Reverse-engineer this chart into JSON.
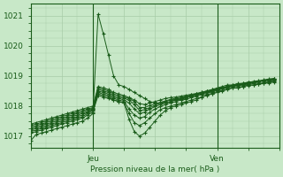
{
  "title": "Pression niveau de la mer( hPa )",
  "ylabel_ticks": [
    1017,
    1018,
    1019,
    1020,
    1021
  ],
  "ylim": [
    1016.6,
    1021.4
  ],
  "xlim": [
    0,
    48
  ],
  "xtick_positions": [
    12,
    36
  ],
  "xtick_labels": [
    "Jeu",
    "Ven"
  ],
  "bg_color": "#c8e8c8",
  "grid_color": "#a8cca8",
  "line_color": "#1a5c1a",
  "series": [
    [
      1016.85,
      1017.05,
      1017.1,
      1017.15,
      1017.2,
      1017.25,
      1017.3,
      1017.35,
      1017.4,
      1017.45,
      1017.5,
      1017.6,
      1017.75,
      1021.05,
      1020.4,
      1019.7,
      1019.0,
      1018.7,
      1018.65,
      1018.55,
      1018.45,
      1018.35,
      1018.25,
      1018.15,
      1018.1,
      1018.1,
      1018.1,
      1018.15,
      1018.2,
      1018.25,
      1018.3,
      1018.35,
      1018.4,
      1018.45,
      1018.5,
      1018.55,
      1018.6,
      1018.65,
      1018.7,
      1018.7,
      1018.75,
      1018.75,
      1018.8,
      1018.8,
      1018.82,
      1018.84,
      1018.86,
      1018.88
    ],
    [
      1017.1,
      1017.15,
      1017.2,
      1017.25,
      1017.3,
      1017.35,
      1017.4,
      1017.45,
      1017.5,
      1017.55,
      1017.6,
      1017.7,
      1017.8,
      1018.35,
      1018.3,
      1018.25,
      1018.2,
      1018.15,
      1018.1,
      1017.55,
      1017.15,
      1017.0,
      1017.1,
      1017.3,
      1017.5,
      1017.7,
      1017.85,
      1017.95,
      1018.0,
      1018.05,
      1018.1,
      1018.15,
      1018.2,
      1018.3,
      1018.35,
      1018.4,
      1018.45,
      1018.5,
      1018.55,
      1018.6,
      1018.6,
      1018.65,
      1018.7,
      1018.7,
      1018.72,
      1018.75,
      1018.77,
      1018.8
    ],
    [
      1017.15,
      1017.2,
      1017.25,
      1017.3,
      1017.35,
      1017.4,
      1017.45,
      1017.5,
      1017.55,
      1017.6,
      1017.65,
      1017.75,
      1017.85,
      1018.4,
      1018.35,
      1018.3,
      1018.2,
      1018.15,
      1018.1,
      1017.75,
      1017.45,
      1017.35,
      1017.45,
      1017.6,
      1017.75,
      1017.88,
      1017.95,
      1018.0,
      1018.05,
      1018.1,
      1018.15,
      1018.2,
      1018.25,
      1018.3,
      1018.38,
      1018.42,
      1018.48,
      1018.52,
      1018.57,
      1018.6,
      1018.62,
      1018.65,
      1018.68,
      1018.7,
      1018.73,
      1018.76,
      1018.79,
      1018.82
    ],
    [
      1017.2,
      1017.25,
      1017.3,
      1017.35,
      1017.4,
      1017.45,
      1017.5,
      1017.55,
      1017.6,
      1017.65,
      1017.7,
      1017.8,
      1017.88,
      1018.45,
      1018.4,
      1018.35,
      1018.25,
      1018.2,
      1018.15,
      1017.9,
      1017.7,
      1017.6,
      1017.65,
      1017.8,
      1017.9,
      1017.98,
      1018.05,
      1018.1,
      1018.15,
      1018.2,
      1018.22,
      1018.28,
      1018.33,
      1018.38,
      1018.42,
      1018.47,
      1018.52,
      1018.57,
      1018.62,
      1018.65,
      1018.67,
      1018.7,
      1018.72,
      1018.75,
      1018.77,
      1018.8,
      1018.82,
      1018.85
    ],
    [
      1017.25,
      1017.3,
      1017.35,
      1017.4,
      1017.45,
      1017.5,
      1017.55,
      1017.6,
      1017.65,
      1017.7,
      1017.75,
      1017.82,
      1017.9,
      1018.5,
      1018.45,
      1018.4,
      1018.3,
      1018.25,
      1018.2,
      1018.1,
      1017.9,
      1017.75,
      1017.8,
      1017.9,
      1017.98,
      1018.05,
      1018.1,
      1018.15,
      1018.2,
      1018.22,
      1018.27,
      1018.32,
      1018.36,
      1018.4,
      1018.45,
      1018.5,
      1018.54,
      1018.58,
      1018.63,
      1018.67,
      1018.7,
      1018.73,
      1018.76,
      1018.8,
      1018.82,
      1018.84,
      1018.86,
      1018.88
    ],
    [
      1017.3,
      1017.35,
      1017.4,
      1017.45,
      1017.5,
      1017.55,
      1017.6,
      1017.65,
      1017.7,
      1017.75,
      1017.8,
      1017.87,
      1017.92,
      1018.55,
      1018.5,
      1018.45,
      1018.35,
      1018.3,
      1018.25,
      1018.2,
      1018.05,
      1017.85,
      1017.88,
      1017.95,
      1018.02,
      1018.1,
      1018.15,
      1018.2,
      1018.22,
      1018.27,
      1018.3,
      1018.35,
      1018.38,
      1018.43,
      1018.47,
      1018.5,
      1018.55,
      1018.6,
      1018.63,
      1018.67,
      1018.7,
      1018.73,
      1018.76,
      1018.8,
      1018.82,
      1018.85,
      1018.87,
      1018.9
    ],
    [
      1017.35,
      1017.4,
      1017.45,
      1017.5,
      1017.55,
      1017.6,
      1017.65,
      1017.7,
      1017.75,
      1017.8,
      1017.85,
      1017.9,
      1017.95,
      1018.6,
      1018.55,
      1018.5,
      1018.4,
      1018.35,
      1018.3,
      1018.25,
      1018.15,
      1017.95,
      1017.95,
      1018.02,
      1018.07,
      1018.12,
      1018.17,
      1018.22,
      1018.26,
      1018.3,
      1018.33,
      1018.37,
      1018.4,
      1018.44,
      1018.48,
      1018.52,
      1018.56,
      1018.6,
      1018.64,
      1018.67,
      1018.7,
      1018.73,
      1018.76,
      1018.8,
      1018.82,
      1018.85,
      1018.88,
      1018.9
    ],
    [
      1017.4,
      1017.45,
      1017.5,
      1017.55,
      1017.6,
      1017.65,
      1017.7,
      1017.75,
      1017.8,
      1017.85,
      1017.9,
      1017.95,
      1018.0,
      1018.65,
      1018.6,
      1018.55,
      1018.45,
      1018.4,
      1018.35,
      1018.28,
      1018.2,
      1018.08,
      1018.05,
      1018.1,
      1018.15,
      1018.2,
      1018.25,
      1018.28,
      1018.3,
      1018.33,
      1018.36,
      1018.39,
      1018.42,
      1018.46,
      1018.5,
      1018.54,
      1018.58,
      1018.62,
      1018.66,
      1018.7,
      1018.73,
      1018.76,
      1018.78,
      1018.82,
      1018.84,
      1018.87,
      1018.9,
      1018.92
    ]
  ]
}
